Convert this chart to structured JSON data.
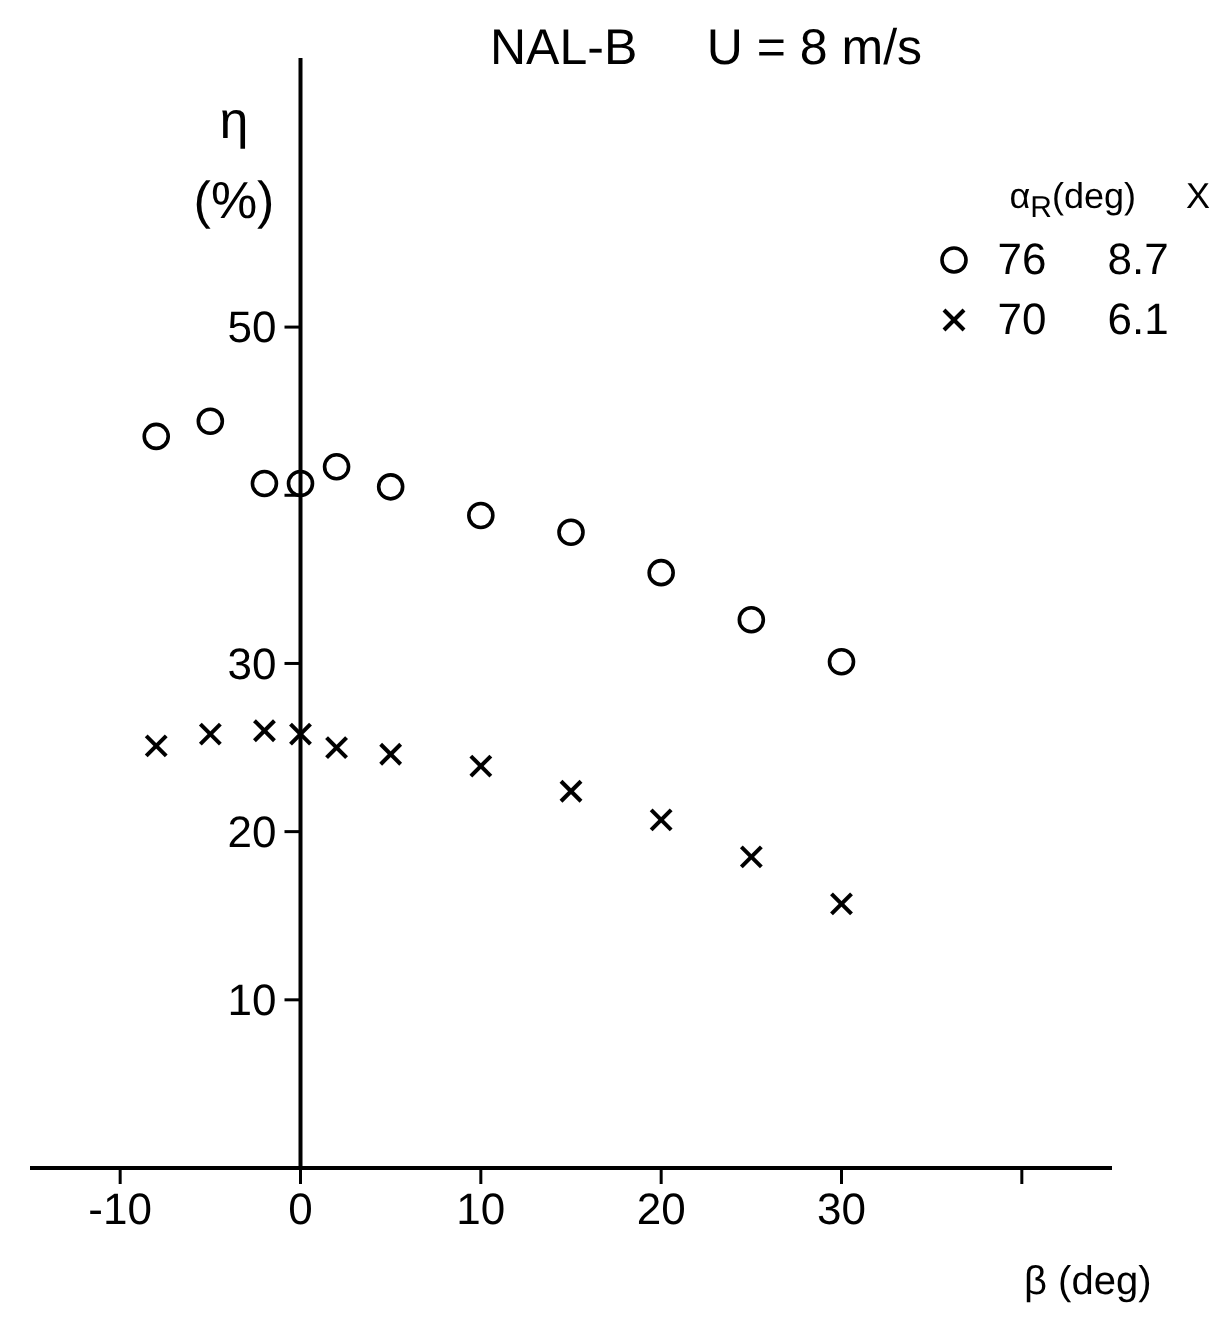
{
  "chart_data": {
    "type": "scatter",
    "title": "NAL-B     U = 8 m/s",
    "xlabel": "β (deg)",
    "ylabel": "η (%)",
    "legend_title": "α$_{R}$(deg)     X",
    "x": [
      -8,
      -5,
      -2,
      0,
      2,
      5,
      10,
      15,
      20,
      25,
      30
    ],
    "series": [
      {
        "name": "76     8.7",
        "color": "#000000",
        "marker": "circle",
        "values": [
          43.5,
          44.4,
          40.7,
          40.7,
          41.7,
          40.5,
          38.8,
          37.8,
          35.4,
          32.6,
          30.1
        ]
      },
      {
        "name": "70     6.1",
        "color": "#000000",
        "marker": "cross",
        "values": [
          25.1,
          25.8,
          26.0,
          25.8,
          25.0,
          24.6,
          23.9,
          22.4,
          20.7,
          18.5,
          15.7
        ]
      }
    ],
    "xlim": [
      -15,
      45
    ],
    "xticks": [
      -10,
      0,
      10,
      20,
      30,
      {
        "value": 40,
        "label": null
      }
    ],
    "ylim": [
      0,
      66
    ],
    "yticks": [
      10,
      20,
      30,
      {
        "value": 40,
        "label": null
      },
      50
    ],
    "grid": false,
    "legend": "top right"
  }
}
